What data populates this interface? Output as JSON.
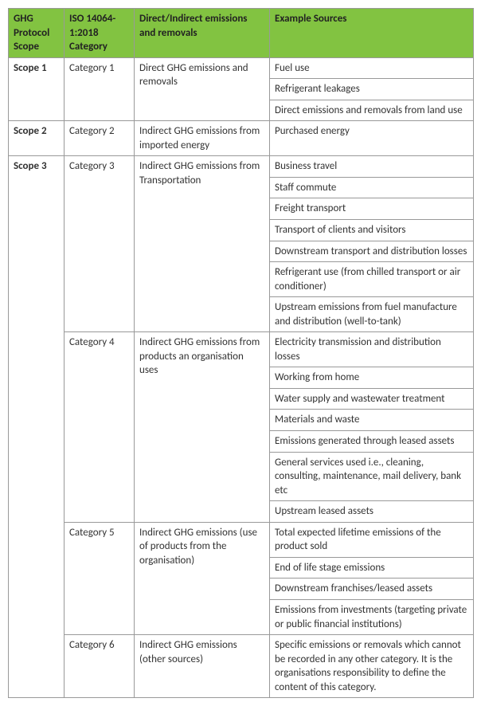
{
  "headers": {
    "col1": "GHG Protocol Scope",
    "col2": "ISO 14064-1:2018 Category",
    "col3": "Direct/Indirect emissions and removals",
    "col4": "Example Sources"
  },
  "rows": {
    "scope1": "Scope 1",
    "scope2": "Scope 2",
    "scope3": "Scope 3",
    "cat1": "Category 1",
    "cat2": "Category 2",
    "cat3": "Category 3",
    "cat4": "Category 4",
    "cat5": "Category 5",
    "cat6": "Category 6",
    "desc1": "Direct GHG emissions and removals",
    "desc2": "Indirect GHG emissions from imported energy",
    "desc3": "Indirect GHG emissions from Transportation",
    "desc4": "Indirect GHG emissions from products an organisation uses",
    "desc5": "Indirect GHG emissions (use of products from the organisation)",
    "desc6": "Indirect GHG emissions (other sources)",
    "src1a": "Fuel use",
    "src1b": "Refrigerant leakages",
    "src1c": "Direct emissions and removals from land use",
    "src2a": "Purchased energy",
    "src3a": "Business travel",
    "src3b": "Staff commute",
    "src3c": "Freight transport",
    "src3d": "Transport of clients and visitors",
    "src3e": "Downstream transport and distribution losses",
    "src3f": "Refrigerant use (from chilled transport or air conditioner)",
    "src3g": "Upstream emissions from fuel manufacture and distribution (well-to-tank)",
    "src4a": "Electricity transmission and distribution losses",
    "src4b": "Working from home",
    "src4c": "Water supply and wastewater treatment",
    "src4d": "Materials and waste",
    "src4e": "Emissions generated through leased assets",
    "src4f": "General services used i.e., cleaning, consulting, maintenance, mail delivery, bank etc",
    "src4g": "Upstream leased assets",
    "src5a": "Total expected lifetime emissions of the product sold",
    "src5b": "End of life stage emissions",
    "src5c": "Downstream franchises/leased assets",
    "src5d": "Emissions from investments (targeting private or public financial institutions)",
    "src6a": "Specific emissions or removals which cannot be recorded in any other category. It is the organisations responsibility to define the content of this category."
  }
}
